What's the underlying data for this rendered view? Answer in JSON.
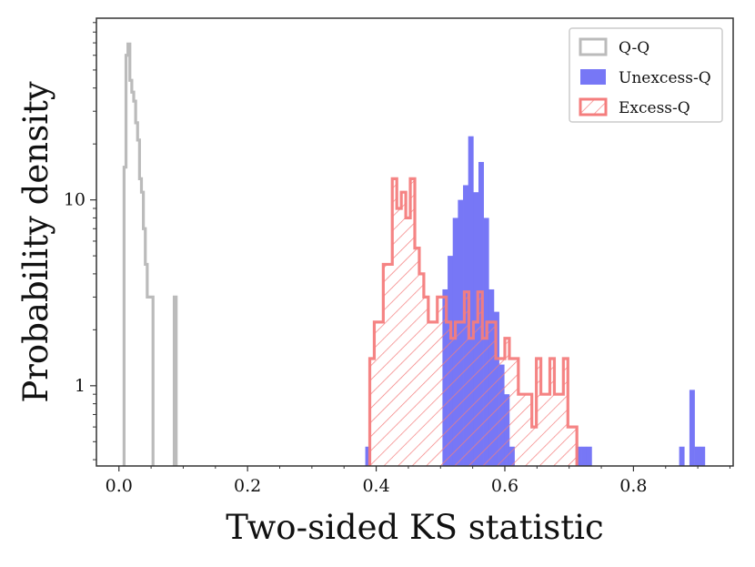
{
  "chart_data": {
    "type": "histogram",
    "title": "",
    "xlabel": "Two-sided KS statistic",
    "ylabel": "Probability density",
    "yscale": "log",
    "xlim": [
      -0.035,
      0.955
    ],
    "ylim": [
      0.37,
      95
    ],
    "x_ticks": [
      0.0,
      0.2,
      0.4,
      0.6,
      0.8
    ],
    "x_tick_labels": [
      "0.0",
      "0.2",
      "0.4",
      "0.6",
      "0.8"
    ],
    "y_ticks": [
      1,
      10
    ],
    "y_tick_labels": [
      "1",
      "10"
    ],
    "legend_position": "top-right",
    "colors": {
      "qq": "#bbbbbb",
      "unexcess": "#7777f6",
      "excess": "#f47d7d",
      "axis": "#333333"
    },
    "series": [
      {
        "name": "Q-Q",
        "style": "step",
        "color": "#bbbbbb",
        "bins": [
          [
            0.005,
            0.008,
            0.37
          ],
          [
            0.008,
            0.011,
            15
          ],
          [
            0.011,
            0.014,
            60
          ],
          [
            0.014,
            0.017,
            69
          ],
          [
            0.017,
            0.02,
            44
          ],
          [
            0.02,
            0.023,
            38
          ],
          [
            0.023,
            0.026,
            34
          ],
          [
            0.026,
            0.029,
            26
          ],
          [
            0.029,
            0.032,
            21
          ],
          [
            0.032,
            0.035,
            13
          ],
          [
            0.035,
            0.038,
            11
          ],
          [
            0.038,
            0.041,
            7
          ],
          [
            0.041,
            0.044,
            4.5
          ],
          [
            0.044,
            0.047,
            3
          ],
          [
            0.047,
            0.05,
            3
          ],
          [
            0.05,
            0.053,
            3
          ],
          [
            0.053,
            0.056,
            0.37
          ],
          [
            0.086,
            0.089,
            3
          ]
        ]
      },
      {
        "name": "Unexcess-Q",
        "style": "filled",
        "color": "#7777f6",
        "bins": [
          [
            0.383,
            0.391,
            0.47
          ],
          [
            0.503,
            0.511,
            3.3
          ],
          [
            0.511,
            0.519,
            5
          ],
          [
            0.519,
            0.527,
            8
          ],
          [
            0.527,
            0.535,
            10
          ],
          [
            0.535,
            0.543,
            12
          ],
          [
            0.543,
            0.551,
            22
          ],
          [
            0.551,
            0.559,
            11
          ],
          [
            0.559,
            0.567,
            16
          ],
          [
            0.567,
            0.575,
            8
          ],
          [
            0.575,
            0.583,
            3.3
          ],
          [
            0.583,
            0.591,
            2.5
          ],
          [
            0.591,
            0.599,
            1.3
          ],
          [
            0.599,
            0.607,
            0.9
          ],
          [
            0.607,
            0.615,
            0.47
          ],
          [
            0.711,
            0.719,
            0.47
          ],
          [
            0.719,
            0.727,
            0.47
          ],
          [
            0.727,
            0.735,
            0.47
          ],
          [
            0.871,
            0.879,
            0.47
          ],
          [
            0.887,
            0.895,
            0.95
          ],
          [
            0.895,
            0.903,
            0.47
          ],
          [
            0.903,
            0.911,
            0.47
          ]
        ]
      },
      {
        "name": "Excess-Q",
        "style": "hatched",
        "color": "#f47d7d",
        "bins": [
          [
            0.39,
            0.397,
            1.4
          ],
          [
            0.397,
            0.404,
            2.2
          ],
          [
            0.404,
            0.411,
            2.2
          ],
          [
            0.411,
            0.418,
            4.5
          ],
          [
            0.418,
            0.425,
            4.5
          ],
          [
            0.425,
            0.432,
            13
          ],
          [
            0.432,
            0.439,
            9
          ],
          [
            0.439,
            0.446,
            11
          ],
          [
            0.446,
            0.453,
            8
          ],
          [
            0.453,
            0.46,
            13
          ],
          [
            0.46,
            0.467,
            5.5
          ],
          [
            0.467,
            0.474,
            4
          ],
          [
            0.474,
            0.481,
            3
          ],
          [
            0.481,
            0.488,
            2.2
          ],
          [
            0.488,
            0.495,
            2.2
          ],
          [
            0.495,
            0.502,
            3
          ],
          [
            0.502,
            0.509,
            3
          ],
          [
            0.509,
            0.516,
            2.2
          ],
          [
            0.516,
            0.523,
            1.8
          ],
          [
            0.523,
            0.53,
            2.2
          ],
          [
            0.53,
            0.537,
            2.2
          ],
          [
            0.537,
            0.544,
            3.2
          ],
          [
            0.544,
            0.551,
            1.8
          ],
          [
            0.551,
            0.558,
            2.2
          ],
          [
            0.558,
            0.565,
            3.2
          ],
          [
            0.565,
            0.572,
            1.8
          ],
          [
            0.572,
            0.579,
            2.2
          ],
          [
            0.579,
            0.586,
            2.2
          ],
          [
            0.586,
            0.593,
            1.4
          ],
          [
            0.593,
            0.6,
            1.4
          ],
          [
            0.6,
            0.607,
            1.8
          ],
          [
            0.607,
            0.614,
            1.4
          ],
          [
            0.614,
            0.621,
            1.4
          ],
          [
            0.621,
            0.628,
            0.9
          ],
          [
            0.628,
            0.635,
            0.9
          ],
          [
            0.635,
            0.642,
            0.9
          ],
          [
            0.642,
            0.649,
            0.6
          ],
          [
            0.649,
            0.656,
            1.4
          ],
          [
            0.656,
            0.663,
            0.9
          ],
          [
            0.663,
            0.67,
            0.9
          ],
          [
            0.67,
            0.677,
            1.4
          ],
          [
            0.677,
            0.684,
            0.9
          ],
          [
            0.684,
            0.691,
            0.9
          ],
          [
            0.691,
            0.698,
            1.4
          ],
          [
            0.698,
            0.705,
            0.6
          ],
          [
            0.705,
            0.712,
            0.6
          ]
        ]
      }
    ]
  }
}
